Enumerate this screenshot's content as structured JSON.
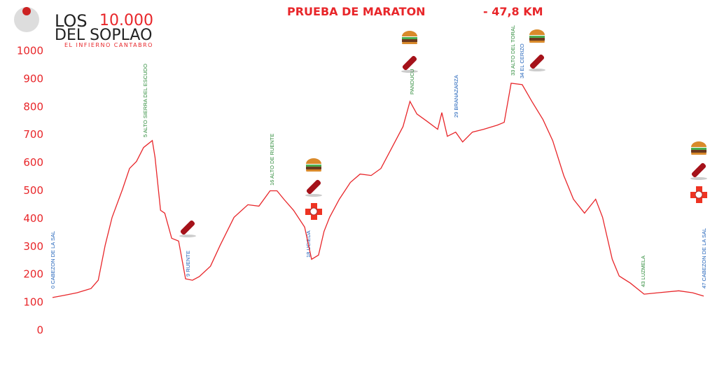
{
  "logo": {
    "line1": "LOS",
    "number": "10.000",
    "line2": "DEL SOPLAO",
    "tagline": "EL INFIERNO CANTABRO"
  },
  "chart_data": {
    "type": "line",
    "title": "PRUEBA DE MARATON",
    "subtitle": "- 47,8 KM",
    "x": [
      0,
      0.76,
      1.77,
      2.78,
      3.3,
      3.8,
      4.3,
      5.05,
      5.56,
      6.06,
      6.57,
      7.2,
      7.4,
      7.8,
      8.1,
      8.6,
      9.1,
      9.6,
      10.1,
      10.6,
      11.4,
      12.1,
      13.1,
      14.1,
      14.9,
      15.7,
      16.2,
      16.7,
      17.4,
      18.2,
      18.7,
      19.2,
      19.6,
      20.0,
      20.7,
      21.5,
      22.2,
      23.0,
      23.7,
      24.5,
      25.3,
      25.8,
      26.3,
      27.0,
      27.8,
      28.1,
      28.5,
      29.1,
      29.6,
      30.3,
      31.1,
      32.1,
      32.6,
      33.1,
      33.9,
      34.6,
      35.4,
      36.1,
      36.9,
      37.6,
      38.4,
      39.2,
      39.7,
      40.4,
      40.9,
      41.7,
      42.7,
      43.7,
      45.2,
      46.2,
      47.0
    ],
    "values": [
      118,
      125,
      135,
      150,
      180,
      305,
      405,
      505,
      580,
      605,
      655,
      680,
      620,
      430,
      420,
      330,
      320,
      185,
      180,
      193,
      230,
      305,
      405,
      450,
      445,
      500,
      500,
      470,
      430,
      370,
      255,
      270,
      355,
      405,
      470,
      530,
      560,
      555,
      580,
      655,
      730,
      820,
      775,
      750,
      720,
      780,
      695,
      710,
      675,
      710,
      720,
      735,
      745,
      885,
      880,
      820,
      755,
      680,
      555,
      470,
      420,
      470,
      405,
      255,
      195,
      170,
      130,
      135,
      142,
      135,
      123
    ],
    "color": "#e8262a",
    "xlim": [
      0,
      47
    ],
    "ylim": [
      0,
      1000
    ],
    "yticks": [
      0,
      100,
      200,
      300,
      400,
      500,
      600,
      700,
      800,
      900,
      1000
    ],
    "annotations": [
      "0 CABEZON DE LA SAL",
      "5 ALTO SIERRA DEL ESCUDO",
      "9 RUENTE",
      "16 ALTO DE RUENTE",
      "18 UCIEDA",
      "PANDUCU",
      "29 BRANAZARZA",
      "33 ALTO DEL TORAL",
      "34 EL CERIZO",
      "43 LUZMELA",
      "47 CABEZON DE LA SAL"
    ]
  }
}
